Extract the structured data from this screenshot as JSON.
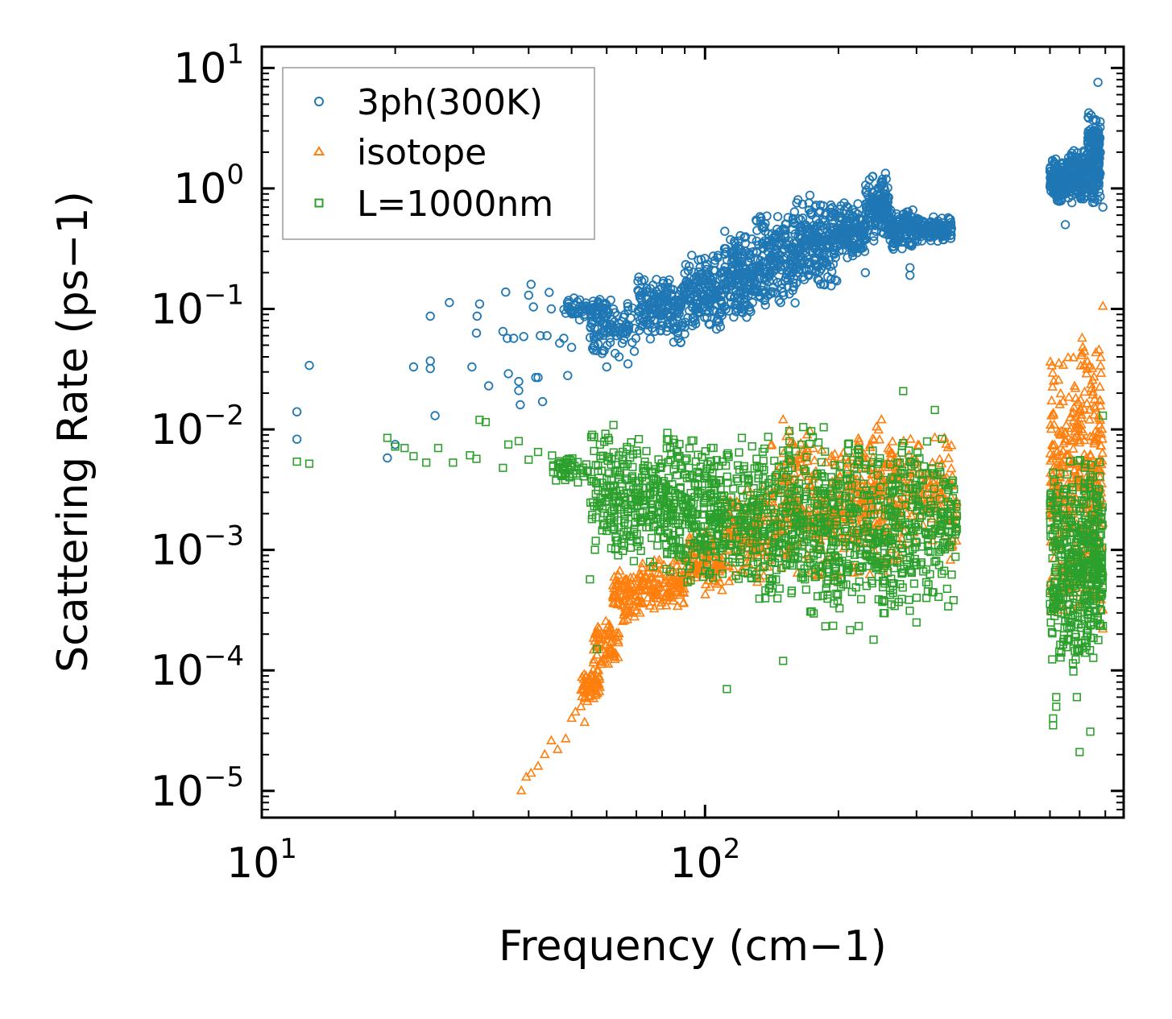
{
  "chart_data": {
    "type": "scatter",
    "title": "",
    "xlabel": "Frequency (cm−1)",
    "ylabel": "Scattering Rate (ps−1)",
    "xscale": "log",
    "yscale": "log",
    "xlim": [
      10,
      880
    ],
    "ylim": [
      6e-06,
      15
    ],
    "grid": false,
    "legend_position": "top-left",
    "x_ticks": [
      {
        "value": 10,
        "base": "10",
        "exp": "1"
      },
      {
        "value": 100,
        "base": "10",
        "exp": "2"
      }
    ],
    "y_ticks": [
      {
        "value": 10,
        "base": "10",
        "exp": "1"
      },
      {
        "value": 1,
        "base": "10",
        "exp": "0"
      },
      {
        "value": 0.1,
        "base": "10",
        "exp": "−1"
      },
      {
        "value": 0.01,
        "base": "10",
        "exp": "−2"
      },
      {
        "value": 0.001,
        "base": "10",
        "exp": "−3"
      },
      {
        "value": 0.0001,
        "base": "10",
        "exp": "−4"
      },
      {
        "value": 1e-05,
        "base": "10",
        "exp": "−5"
      }
    ],
    "series": [
      {
        "name": "3ph(300K)",
        "marker": "circle",
        "color": "#1f77b4",
        "points": [
          [
            12.0,
            0.014
          ],
          [
            12.0,
            0.0083
          ],
          [
            12.8,
            0.034
          ],
          [
            19.2,
            0.0058
          ],
          [
            20.0,
            0.0075
          ],
          [
            22.0,
            0.033
          ],
          [
            24.0,
            0.087
          ],
          [
            24.0,
            0.037
          ],
          [
            24.0,
            0.032
          ],
          [
            24.6,
            0.013
          ],
          [
            26.5,
            0.113
          ],
          [
            29.8,
            0.033
          ],
          [
            30.5,
            0.063
          ],
          [
            30.6,
            0.087
          ],
          [
            31.0,
            0.11
          ],
          [
            32.5,
            0.023
          ],
          [
            35.0,
            0.065
          ],
          [
            35.5,
            0.138
          ],
          [
            35.8,
            0.057
          ],
          [
            36.0,
            0.029
          ],
          [
            37.0,
            0.057
          ],
          [
            38.0,
            0.025
          ],
          [
            38.0,
            0.021
          ],
          [
            38.3,
            0.016
          ],
          [
            39.0,
            0.059
          ],
          [
            40.0,
            0.13
          ],
          [
            40.5,
            0.16
          ],
          [
            41.0,
            0.104
          ],
          [
            41.5,
            0.027
          ],
          [
            42.0,
            0.027
          ],
          [
            42.5,
            0.06
          ],
          [
            43.0,
            0.017
          ],
          [
            44.0,
            0.06
          ],
          [
            44.5,
            0.137
          ],
          [
            45.0,
            0.1
          ],
          [
            47.0,
            0.052
          ],
          [
            48.0,
            0.057
          ],
          [
            49.0,
            0.028
          ],
          [
            50.0,
            0.048
          ],
          [
            57.0,
            0.045
          ],
          [
            60.0,
            0.033
          ],
          [
            64.0,
            0.04
          ],
          [
            67.0,
            0.035
          ],
          [
            185.0,
            0.16
          ],
          [
            230.0,
            0.2
          ],
          [
            290.0,
            0.19
          ],
          [
            290.0,
            0.22
          ],
          [
            650.0,
            0.5
          ],
          [
            770.0,
            7.6
          ],
          [
            790.0,
            0.7
          ]
        ],
        "bands": [
          {
            "x0": 48,
            "x1": 60,
            "lo": 0.08,
            "hi": 0.125,
            "n": 70
          },
          {
            "x0": 55,
            "x1": 70,
            "lo": 0.04,
            "hi": 0.13,
            "n": 90
          },
          {
            "x0": 70,
            "x1": 90,
            "lo": 0.05,
            "hi": 0.2,
            "n": 170
          },
          {
            "x0": 90,
            "x1": 110,
            "lo": 0.06,
            "hi": 0.3,
            "n": 170
          },
          {
            "x0": 110,
            "x1": 130,
            "lo": 0.08,
            "hi": 0.45,
            "n": 170
          },
          {
            "x0": 130,
            "x1": 160,
            "lo": 0.1,
            "hi": 0.7,
            "n": 190
          },
          {
            "x0": 160,
            "x1": 200,
            "lo": 0.14,
            "hi": 0.9,
            "n": 210
          },
          {
            "x0": 200,
            "x1": 230,
            "lo": 0.25,
            "hi": 0.8,
            "n": 140
          },
          {
            "x0": 230,
            "x1": 260,
            "lo": 0.35,
            "hi": 1.35,
            "n": 160
          },
          {
            "x0": 260,
            "x1": 300,
            "lo": 0.3,
            "hi": 0.7,
            "n": 120
          },
          {
            "x0": 300,
            "x1": 360,
            "lo": 0.35,
            "hi": 0.6,
            "n": 120
          },
          {
            "x0": 600,
            "x1": 660,
            "lo": 0.75,
            "hi": 1.8,
            "n": 150
          },
          {
            "x0": 660,
            "x1": 730,
            "lo": 0.75,
            "hi": 2.2,
            "n": 160
          },
          {
            "x0": 730,
            "x1": 780,
            "lo": 0.7,
            "hi": 4.7,
            "n": 170
          }
        ]
      },
      {
        "name": "isotope",
        "marker": "triangle",
        "color": "#ff7f0e",
        "points": [
          [
            38.5,
            1e-05
          ],
          [
            39.5,
            1.3e-05
          ],
          [
            40.5,
            1.4e-05
          ],
          [
            42.0,
            1.6e-05
          ],
          [
            43.5,
            2e-05
          ],
          [
            45.0,
            2.6e-05
          ],
          [
            46.5,
            2.2e-05
          ],
          [
            48.5,
            2.7e-05
          ],
          [
            50.0,
            4e-05
          ],
          [
            51.0,
            4.5e-05
          ],
          [
            52.5,
            5e-05
          ],
          [
            53.5,
            3.7e-05
          ],
          [
            150.0,
            0.012
          ],
          [
            170.0,
            0.009
          ],
          [
            250.0,
            0.012
          ],
          [
            330.0,
            0.0085
          ],
          [
            790.0,
            0.105
          ],
          [
            790.0,
            0.00022
          ]
        ],
        "bands": [
          {
            "x0": 52,
            "x1": 58,
            "lo": 5e-05,
            "hi": 0.00012,
            "n": 60
          },
          {
            "x0": 56,
            "x1": 64,
            "lo": 0.0001,
            "hi": 0.0003,
            "n": 70
          },
          {
            "x0": 62,
            "x1": 72,
            "lo": 0.00025,
            "hi": 0.0007,
            "n": 90
          },
          {
            "x0": 72,
            "x1": 90,
            "lo": 0.0003,
            "hi": 0.0009,
            "n": 120
          },
          {
            "x0": 90,
            "x1": 110,
            "lo": 0.0004,
            "hi": 0.0015,
            "n": 110
          },
          {
            "x0": 110,
            "x1": 140,
            "lo": 0.0005,
            "hi": 0.004,
            "n": 130
          },
          {
            "x0": 140,
            "x1": 175,
            "lo": 0.0006,
            "hi": 0.012,
            "n": 150
          },
          {
            "x0": 175,
            "x1": 220,
            "lo": 0.0005,
            "hi": 0.009,
            "n": 150
          },
          {
            "x0": 220,
            "x1": 270,
            "lo": 0.0006,
            "hi": 0.012,
            "n": 150
          },
          {
            "x0": 270,
            "x1": 370,
            "lo": 0.0008,
            "hi": 0.009,
            "n": 150
          },
          {
            "x0": 600,
            "x1": 700,
            "lo": 0.0002,
            "hi": 0.05,
            "n": 200
          },
          {
            "x0": 700,
            "x1": 790,
            "lo": 0.0002,
            "hi": 0.09,
            "n": 200
          }
        ]
      },
      {
        "name": "L=1000nm",
        "marker": "square",
        "color": "#2ca02c",
        "points": [
          [
            12.0,
            0.0054
          ],
          [
            12.8,
            0.0052
          ],
          [
            19.2,
            0.0085
          ],
          [
            20.0,
            0.0072
          ],
          [
            21.0,
            0.007
          ],
          [
            22.0,
            0.006
          ],
          [
            23.5,
            0.0053
          ],
          [
            25.0,
            0.007
          ],
          [
            27.0,
            0.0053
          ],
          [
            29.5,
            0.0061
          ],
          [
            30.5,
            0.0057
          ],
          [
            31.0,
            0.012
          ],
          [
            32.0,
            0.0115
          ],
          [
            35.0,
            0.0048
          ],
          [
            36.0,
            0.0075
          ],
          [
            38.0,
            0.008
          ],
          [
            40.0,
            0.0056
          ],
          [
            42.0,
            0.0065
          ],
          [
            55.0,
            0.00057
          ],
          [
            57.0,
            0.00015
          ],
          [
            112.0,
            7e-05
          ],
          [
            150.0,
            0.00012
          ],
          [
            240.0,
            0.00018
          ],
          [
            280.0,
            0.0208
          ],
          [
            300.0,
            0.00025
          ],
          [
            330.0,
            0.0145
          ],
          [
            610.0,
            3.5e-05
          ],
          [
            610.0,
            4e-05
          ],
          [
            620.0,
            5e-05
          ],
          [
            620.0,
            6e-05
          ],
          [
            690.0,
            6e-05
          ],
          [
            700.0,
            2.1e-05
          ],
          [
            740.0,
            3.1e-05
          ],
          [
            790.0,
            0.013
          ]
        ],
        "bands": [
          {
            "x0": 45,
            "x1": 55,
            "lo": 0.0035,
            "hi": 0.0065,
            "n": 50
          },
          {
            "x0": 55,
            "x1": 65,
            "lo": 0.0008,
            "hi": 0.012,
            "n": 110
          },
          {
            "x0": 65,
            "x1": 80,
            "lo": 0.0007,
            "hi": 0.01,
            "n": 150
          },
          {
            "x0": 80,
            "x1": 100,
            "lo": 0.0005,
            "hi": 0.01,
            "n": 190
          },
          {
            "x0": 100,
            "x1": 130,
            "lo": 0.0004,
            "hi": 0.01,
            "n": 200
          },
          {
            "x0": 130,
            "x1": 170,
            "lo": 0.0003,
            "hi": 0.012,
            "n": 210
          },
          {
            "x0": 170,
            "x1": 220,
            "lo": 0.0002,
            "hi": 0.012,
            "n": 200
          },
          {
            "x0": 220,
            "x1": 280,
            "lo": 0.0002,
            "hi": 0.009,
            "n": 190
          },
          {
            "x0": 280,
            "x1": 370,
            "lo": 0.0003,
            "hi": 0.009,
            "n": 180
          },
          {
            "x0": 600,
            "x1": 700,
            "lo": 8e-05,
            "hi": 0.007,
            "n": 230
          },
          {
            "x0": 700,
            "x1": 790,
            "lo": 0.0001,
            "hi": 0.007,
            "n": 230
          }
        ]
      }
    ]
  }
}
